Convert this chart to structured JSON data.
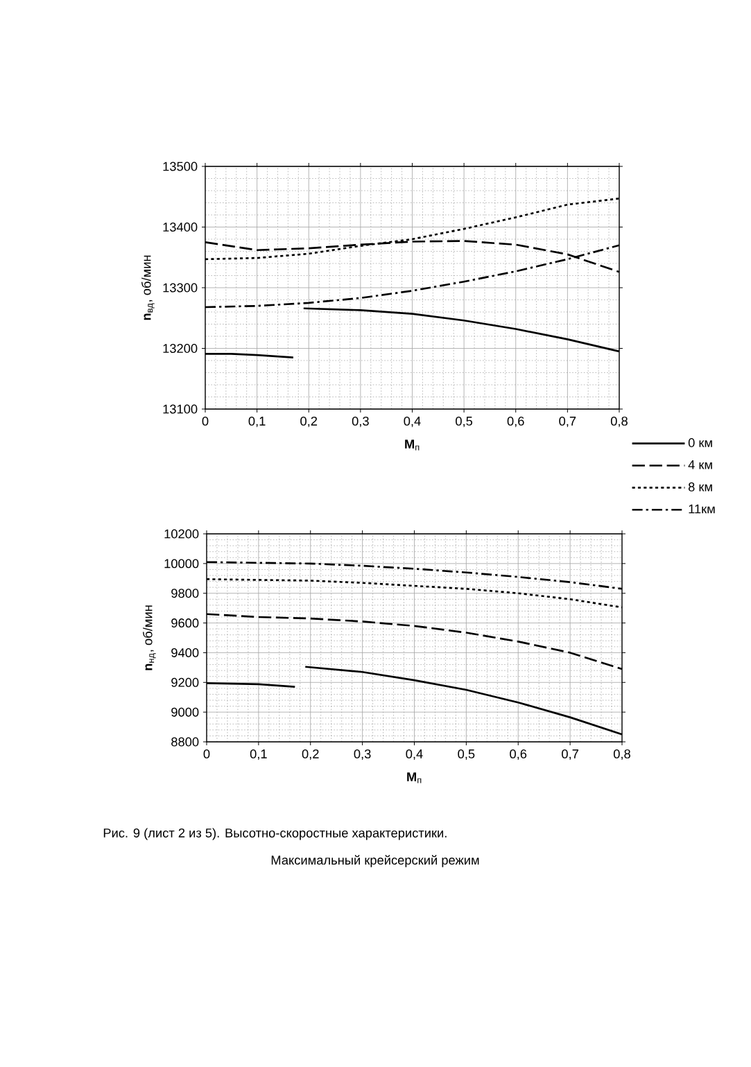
{
  "chart_data": [
    {
      "type": "line",
      "xlabel": "**M**$_{п}$",
      "ylabel": "**n**$_{вд}$, об/мин",
      "xlim": [
        0,
        0.8
      ],
      "ylim": [
        13100,
        13500
      ],
      "xticks": [
        0,
        {
          "value": 0.1,
          "label": "0,1"
        },
        {
          "value": 0.2,
          "label": "0,2"
        },
        {
          "value": 0.3,
          "label": "0,3"
        },
        {
          "value": 0.4,
          "label": "0,4"
        },
        {
          "value": 0.5,
          "label": "0,5"
        },
        {
          "value": 0.6,
          "label": "0,6"
        },
        {
          "value": 0.7,
          "label": "0,7"
        },
        {
          "value": 0.8,
          "label": "0,8"
        }
      ],
      "yticks": [
        13100,
        13200,
        13300,
        13400,
        13500
      ],
      "grid": true,
      "legend": "right",
      "series": [
        {
          "name": "0 км",
          "color": "#000000",
          "line_style": "solid",
          "x": [
            0,
            0.05,
            0.1,
            0.17,
            0.18,
            0.19,
            0.3,
            0.4,
            0.5,
            0.6,
            0.7,
            0.8
          ],
          "values": [
            13191,
            13191,
            13189,
            13185,
            null,
            13266,
            13263,
            13257,
            13246,
            13232,
            13215,
            13195
          ]
        },
        {
          "name": "4 км",
          "color": "#000000",
          "line_style": "dashed",
          "x": [
            0,
            0.1,
            0.2,
            0.3,
            0.4,
            0.5,
            0.6,
            0.7,
            0.8
          ],
          "values": [
            13375,
            13362,
            13365,
            13371,
            13376,
            13377,
            13371,
            13355,
            13326
          ]
        },
        {
          "name": "8 км",
          "color": "#000000",
          "line_style": "dotted",
          "x": [
            0,
            0.1,
            0.2,
            0.3,
            0.4,
            0.5,
            0.6,
            0.7,
            0.8
          ],
          "values": [
            13347,
            13349,
            13356,
            13369,
            13380,
            13397,
            13416,
            13437,
            13447
          ]
        },
        {
          "name": "11км",
          "color": "#000000",
          "line_style": "dashdot",
          "x": [
            0,
            0.1,
            0.2,
            0.3,
            0.4,
            0.5,
            0.6,
            0.7,
            0.8
          ],
          "values": [
            13268,
            13270,
            13275,
            13283,
            13295,
            13310,
            13327,
            13347,
            13370
          ]
        }
      ]
    },
    {
      "type": "line",
      "xlabel": "**M**$_{п}$",
      "ylabel": "**n**$_{нд}$, об/мин",
      "xlim": [
        0,
        0.8
      ],
      "ylim": [
        8800,
        10200
      ],
      "xticks": [
        0,
        {
          "value": 0.1,
          "label": "0,1"
        },
        {
          "value": 0.2,
          "label": "0,2"
        },
        {
          "value": 0.3,
          "label": "0,3"
        },
        {
          "value": 0.4,
          "label": "0,4"
        },
        {
          "value": 0.5,
          "label": "0,5"
        },
        {
          "value": 0.6,
          "label": "0,6"
        },
        {
          "value": 0.7,
          "label": "0,7"
        },
        {
          "value": 0.8,
          "label": "0,8"
        }
      ],
      "yticks": [
        8800,
        9000,
        9200,
        9400,
        9600,
        9800,
        10000,
        10200
      ],
      "grid": true,
      "annotations": [
        "Рис. 9 (лист 2 из 5).  Высотно-скоростные характеристики.",
        "Максимальный крейсерский режим"
      ],
      "series": [
        {
          "color": "#000000",
          "line_style": "solid",
          "x": [
            0,
            0.1,
            0.17,
            0.18,
            0.19,
            0.3,
            0.4,
            0.5,
            0.6,
            0.7,
            0.8
          ],
          "values": [
            9195,
            9188,
            9170,
            null,
            9305,
            9270,
            9215,
            9150,
            9065,
            8965,
            8850
          ]
        },
        {
          "color": "#000000",
          "line_style": "dashed",
          "x": [
            0,
            0.1,
            0.2,
            0.3,
            0.4,
            0.5,
            0.6,
            0.7,
            0.8
          ],
          "values": [
            9660,
            9640,
            9630,
            9610,
            9580,
            9535,
            9475,
            9400,
            9290
          ]
        },
        {
          "color": "#000000",
          "line_style": "dotted",
          "x": [
            0,
            0.1,
            0.2,
            0.3,
            0.4,
            0.5,
            0.6,
            0.7,
            0.8
          ],
          "values": [
            9895,
            9890,
            9885,
            9870,
            9850,
            9830,
            9800,
            9760,
            9705
          ]
        },
        {
          "color": "#000000",
          "line_style": "dashdot",
          "x": [
            0,
            0.1,
            0.2,
            0.3,
            0.4,
            0.5,
            0.6,
            0.7,
            0.8
          ],
          "values": [
            10010,
            10005,
            10000,
            9985,
            9965,
            9940,
            9910,
            9875,
            9830
          ]
        }
      ]
    }
  ]
}
